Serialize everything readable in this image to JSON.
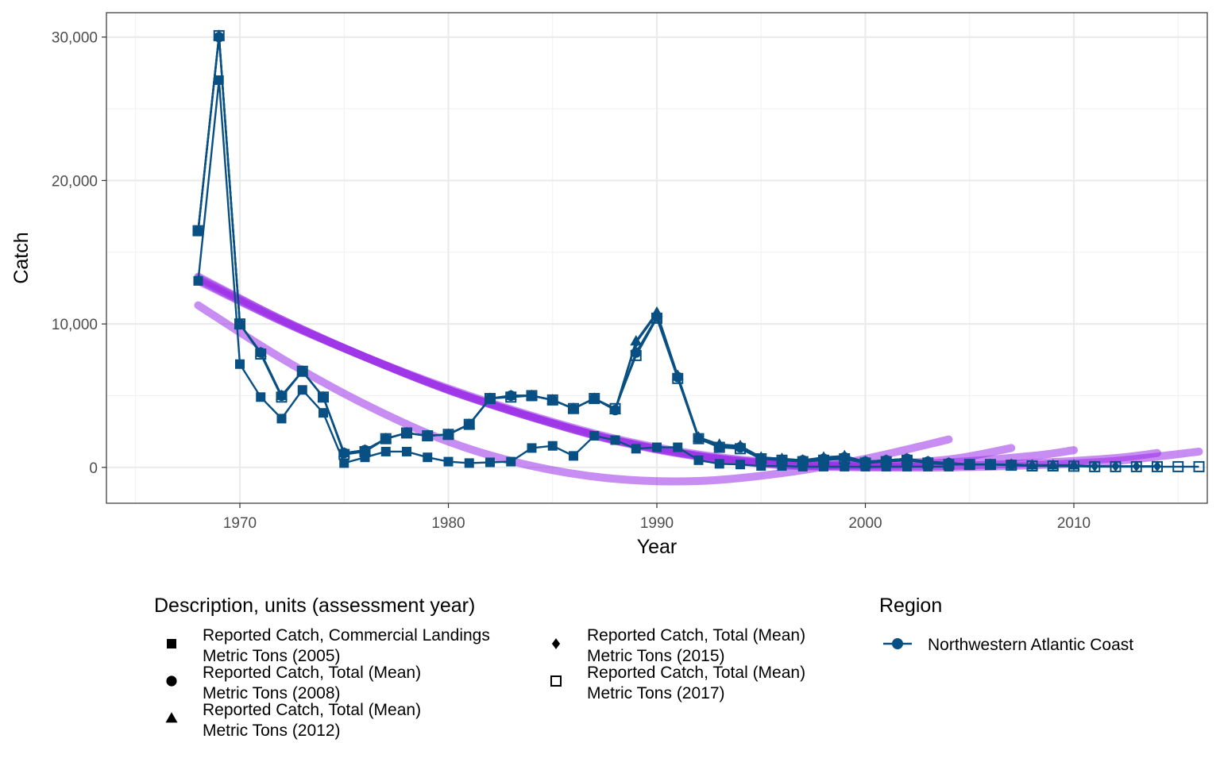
{
  "chart_data": {
    "type": "line",
    "xlabel": "Year",
    "ylabel": "Catch",
    "xlim": [
      1963.6,
      2016.4
    ],
    "ylim": [
      -2500,
      31700
    ],
    "x_ticks": [
      1970,
      1980,
      1990,
      2000,
      2010
    ],
    "x_tick_labels": [
      "1970",
      "1980",
      "1990",
      "2000",
      "2010"
    ],
    "y_ticks": [
      0,
      10000,
      20000,
      30000
    ],
    "y_tick_labels": [
      "0",
      "10,000",
      "20,000",
      "30,000"
    ],
    "grid": true,
    "line_color": "#084f83",
    "smooth_color": "#9b30e8",
    "series": [
      {
        "name": "Reported Catch, Commercial Landings Metric Tons (2005)",
        "marker": "filled-square",
        "x": [
          1968,
          1969,
          1970,
          1971,
          1972,
          1973,
          1974,
          1975,
          1976,
          1977,
          1978,
          1979,
          1980,
          1981,
          1982,
          1983,
          1984,
          1985,
          1986,
          1987,
          1988,
          1989,
          1990,
          1991,
          1992,
          1993,
          1994,
          1995,
          1996,
          1997,
          1998,
          1999,
          2000,
          2001,
          2002,
          2003,
          2004
        ],
        "y": [
          13000,
          27000,
          7200,
          4900,
          3400,
          5400,
          3800,
          300,
          700,
          1100,
          1100,
          700,
          400,
          300,
          350,
          400,
          1350,
          1500,
          800,
          2200,
          1900,
          1300,
          1400,
          1400,
          500,
          250,
          200,
          100,
          100,
          50,
          50,
          50,
          50,
          50,
          50,
          50,
          50
        ],
        "smooth": [
          [
            1968,
            11300
          ],
          [
            1972,
            7600
          ],
          [
            1976,
            4400
          ],
          [
            1980,
            1800
          ],
          [
            1984,
            100
          ],
          [
            1988,
            -800
          ],
          [
            1992,
            -950
          ],
          [
            1996,
            -400
          ],
          [
            2000,
            600
          ],
          [
            2004,
            1950
          ]
        ]
      },
      {
        "name": "Reported Catch, Total (Mean) Metric Tons (2008)",
        "marker": "filled-circle",
        "x": [
          1968,
          1969,
          1970,
          1971,
          1972,
          1973,
          1974,
          1975,
          1976,
          1977,
          1978,
          1979,
          1980,
          1981,
          1982,
          1983,
          1984,
          1985,
          1986,
          1987,
          1988,
          1989,
          1990,
          1991,
          1992,
          1993,
          1994,
          1995,
          1996,
          1997,
          1998,
          1999,
          2000,
          2001,
          2002,
          2003,
          2004,
          2005,
          2006,
          2007
        ],
        "y": [
          16500,
          30000,
          10000,
          8000,
          5000,
          6700,
          4900,
          1000,
          1200,
          2000,
          2400,
          2200,
          2300,
          3000,
          4800,
          5000,
          5000,
          4700,
          4100,
          4800,
          4000,
          8000,
          10500,
          6300,
          2000,
          1400,
          1400,
          600,
          500,
          500,
          600,
          700,
          400,
          500,
          600,
          400,
          300,
          200,
          200,
          200
        ],
        "smooth": [
          [
            1968,
            13000
          ],
          [
            1972,
            10200
          ],
          [
            1976,
            7700
          ],
          [
            1980,
            5500
          ],
          [
            1984,
            3600
          ],
          [
            1988,
            2000
          ],
          [
            1992,
            900
          ],
          [
            1996,
            300
          ],
          [
            2000,
            200
          ],
          [
            2004,
            550
          ],
          [
            2007,
            1350
          ]
        ]
      },
      {
        "name": "Reported Catch, Total (Mean) Metric Tons (2012)",
        "marker": "filled-triangle",
        "x": [
          1968,
          1969,
          1970,
          1971,
          1972,
          1973,
          1974,
          1975,
          1976,
          1977,
          1978,
          1979,
          1980,
          1981,
          1982,
          1983,
          1984,
          1985,
          1986,
          1987,
          1988,
          1989,
          1990,
          1991,
          1992,
          1993,
          1994,
          1995,
          1996,
          1997,
          1998,
          1999,
          2000,
          2001,
          2002,
          2003,
          2004,
          2005,
          2006,
          2007,
          2008,
          2009,
          2010
        ],
        "y": [
          16500,
          30100,
          10000,
          8000,
          5000,
          6700,
          4900,
          1000,
          1200,
          2000,
          2400,
          2200,
          2300,
          3000,
          4800,
          5000,
          5000,
          4700,
          4100,
          4800,
          4000,
          8800,
          10800,
          6400,
          2100,
          1600,
          1500,
          700,
          600,
          500,
          700,
          800,
          400,
          500,
          600,
          400,
          300,
          200,
          200,
          200,
          150,
          150,
          150
        ],
        "smooth": [
          [
            1968,
            13100
          ],
          [
            1972,
            10200
          ],
          [
            1976,
            7700
          ],
          [
            1980,
            5400
          ],
          [
            1984,
            3500
          ],
          [
            1988,
            1900
          ],
          [
            1992,
            800
          ],
          [
            1996,
            250
          ],
          [
            2000,
            150
          ],
          [
            2004,
            350
          ],
          [
            2008,
            800
          ],
          [
            2010,
            1200
          ]
        ]
      },
      {
        "name": "Reported Catch, Total (Mean) Metric Tons (2015)",
        "marker": "filled-diamond",
        "x": [
          1968,
          1969,
          1970,
          1971,
          1972,
          1973,
          1974,
          1975,
          1976,
          1977,
          1978,
          1979,
          1980,
          1981,
          1982,
          1983,
          1984,
          1985,
          1986,
          1987,
          1988,
          1989,
          1990,
          1991,
          1992,
          1993,
          1994,
          1995,
          1996,
          1997,
          1998,
          1999,
          2000,
          2001,
          2002,
          2003,
          2004,
          2005,
          2006,
          2007,
          2008,
          2009,
          2010,
          2011,
          2012,
          2013,
          2014
        ],
        "y": [
          16500,
          30100,
          10000,
          8000,
          5000,
          6700,
          4900,
          1000,
          1200,
          2000,
          2400,
          2200,
          2300,
          3000,
          4800,
          5000,
          5000,
          4700,
          4100,
          4800,
          4000,
          8700,
          10700,
          6400,
          2100,
          1500,
          1400,
          700,
          600,
          500,
          600,
          700,
          400,
          500,
          600,
          400,
          300,
          200,
          200,
          200,
          150,
          150,
          150,
          80,
          80,
          80,
          80
        ],
        "smooth": [
          [
            1968,
            13200
          ],
          [
            1972,
            10300
          ],
          [
            1976,
            7700
          ],
          [
            1980,
            5400
          ],
          [
            1984,
            3500
          ],
          [
            1988,
            1900
          ],
          [
            1992,
            800
          ],
          [
            1996,
            200
          ],
          [
            2000,
            50
          ],
          [
            2004,
            100
          ],
          [
            2008,
            300
          ],
          [
            2012,
            650
          ],
          [
            2014,
            1000
          ]
        ]
      },
      {
        "name": "Reported Catch, Total (Mean) Metric Tons (2017)",
        "marker": "open-square",
        "x": [
          1968,
          1969,
          1970,
          1971,
          1972,
          1973,
          1974,
          1975,
          1976,
          1977,
          1978,
          1979,
          1980,
          1981,
          1982,
          1983,
          1984,
          1985,
          1986,
          1987,
          1988,
          1989,
          1990,
          1991,
          1992,
          1993,
          1994,
          1995,
          1996,
          1997,
          1998,
          1999,
          2000,
          2001,
          2002,
          2003,
          2004,
          2005,
          2006,
          2007,
          2008,
          2009,
          2010,
          2011,
          2012,
          2013,
          2014,
          2015,
          2016
        ],
        "y": [
          16500,
          30100,
          10000,
          7900,
          4900,
          6700,
          4900,
          900,
          1100,
          2000,
          2400,
          2200,
          2300,
          3000,
          4800,
          4900,
          5000,
          4700,
          4100,
          4800,
          4100,
          7800,
          10400,
          6200,
          2000,
          1400,
          1300,
          600,
          500,
          400,
          500,
          600,
          300,
          400,
          500,
          300,
          200,
          200,
          200,
          150,
          100,
          100,
          80,
          50,
          50,
          50,
          50,
          50,
          50
        ],
        "smooth": [
          [
            1968,
            13300
          ],
          [
            1972,
            10300
          ],
          [
            1976,
            7700
          ],
          [
            1980,
            5400
          ],
          [
            1984,
            3500
          ],
          [
            1988,
            1850
          ],
          [
            1992,
            750
          ],
          [
            1996,
            150
          ],
          [
            2000,
            0
          ],
          [
            2004,
            0
          ],
          [
            2008,
            150
          ],
          [
            2012,
            450
          ],
          [
            2016,
            1100
          ]
        ]
      }
    ],
    "legend_shape": {
      "title": "Description, units (assessment year)",
      "entries": [
        {
          "marker": "filled-square",
          "line1": "Reported Catch, Commercial Landings",
          "line2": "Metric Tons (2005)"
        },
        {
          "marker": "filled-circle",
          "line1": "Reported Catch, Total (Mean)",
          "line2": "Metric Tons (2008)"
        },
        {
          "marker": "filled-triangle",
          "line1": "Reported Catch, Total (Mean)",
          "line2": "Metric Tons (2012)"
        },
        {
          "marker": "filled-diamond",
          "line1": "Reported Catch, Total (Mean)",
          "line2": "Metric Tons (2015)"
        },
        {
          "marker": "open-square",
          "line1": "Reported Catch, Total (Mean)",
          "line2": "Metric Tons (2017)"
        }
      ]
    },
    "legend_region": {
      "title": "Region",
      "entries": [
        "Northwestern Atlantic Coast"
      ]
    }
  }
}
